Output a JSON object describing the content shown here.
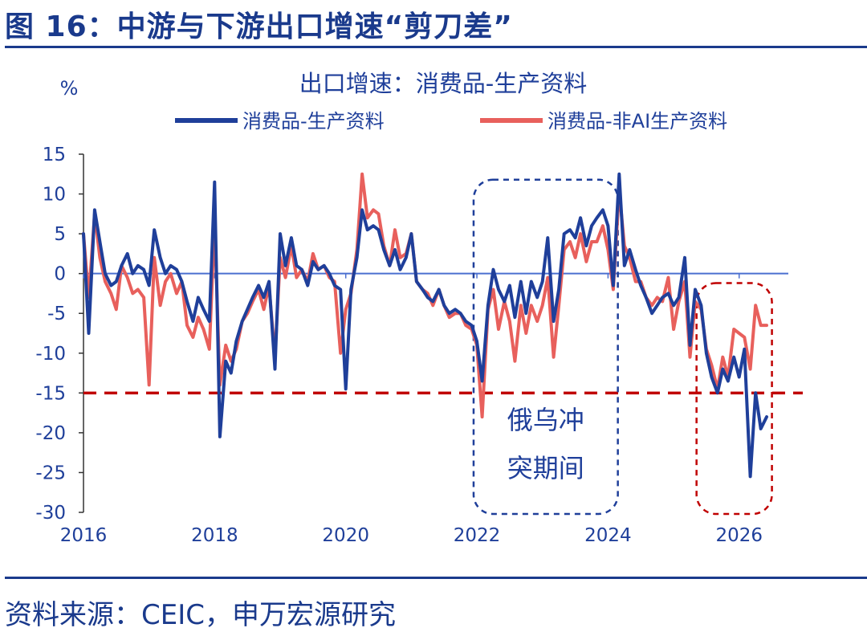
{
  "figure": {
    "title": "图 16：中游与下游出口增速“剪刀差”",
    "source": "资料来源：CEIC，申万宏源研究"
  },
  "chart_data": {
    "type": "line",
    "title": "出口增速：消费品-生产资料",
    "ylabel": "%",
    "xlabel": "",
    "ylim": [
      -30,
      15
    ],
    "yticks": [
      15,
      10,
      5,
      0,
      -5,
      -10,
      -15,
      -20,
      -25,
      -30
    ],
    "xlim": [
      2016,
      2026.75
    ],
    "xticks": [
      2016,
      2018,
      2020,
      2022,
      2024,
      2026
    ],
    "legend_position": "top",
    "grid": false,
    "colors": {
      "series1": "#1f3f9a",
      "series2": "#e8605c",
      "reference": "#c00000",
      "zero": "#4a6fd0"
    },
    "reference_line": {
      "y": -15,
      "style": "dashed",
      "color": "#c00000"
    },
    "annotations": [
      {
        "text_lines": [
          "俄乌冲",
          "突期间"
        ],
        "x_range": [
          2021.95,
          2024.15
        ],
        "y_range": [
          -30.2,
          11.8
        ],
        "color": "#1f3f9a",
        "style": "dashed-rounded-box"
      },
      {
        "text_lines": [],
        "x_range": [
          2025.35,
          2026.5
        ],
        "y_range": [
          -30.2,
          -1.2
        ],
        "color": "#c00000",
        "style": "dashed-rounded-box"
      }
    ],
    "series": [
      {
        "name": "消费品-生产资料",
        "color": "#1f3f9a",
        "points": [
          [
            2016.0,
            5
          ],
          [
            2016.08,
            -7.5
          ],
          [
            2016.17,
            8
          ],
          [
            2016.25,
            4
          ],
          [
            2016.33,
            0
          ],
          [
            2016.42,
            -1.5
          ],
          [
            2016.5,
            -1
          ],
          [
            2016.58,
            1
          ],
          [
            2016.67,
            2.5
          ],
          [
            2016.75,
            0
          ],
          [
            2016.83,
            1
          ],
          [
            2016.92,
            0.5
          ],
          [
            2017.0,
            -1.5
          ],
          [
            2017.08,
            5.5
          ],
          [
            2017.17,
            2
          ],
          [
            2017.25,
            0
          ],
          [
            2017.33,
            1
          ],
          [
            2017.42,
            0.5
          ],
          [
            2017.5,
            -1
          ],
          [
            2017.58,
            -3.5
          ],
          [
            2017.67,
            -6
          ],
          [
            2017.75,
            -3
          ],
          [
            2017.83,
            -4.5
          ],
          [
            2017.92,
            -6
          ],
          [
            2018.0,
            11.5
          ],
          [
            2018.08,
            -20.5
          ],
          [
            2018.17,
            -11
          ],
          [
            2018.25,
            -12.5
          ],
          [
            2018.33,
            -8.5
          ],
          [
            2018.42,
            -6
          ],
          [
            2018.5,
            -4.5
          ],
          [
            2018.58,
            -3
          ],
          [
            2018.67,
            -1.5
          ],
          [
            2018.75,
            -3
          ],
          [
            2018.83,
            -1
          ],
          [
            2018.92,
            -12
          ],
          [
            2019.0,
            5
          ],
          [
            2019.08,
            1
          ],
          [
            2019.17,
            4.5
          ],
          [
            2019.25,
            1
          ],
          [
            2019.33,
            0.5
          ],
          [
            2019.42,
            -1.5
          ],
          [
            2019.5,
            1.5
          ],
          [
            2019.58,
            0.5
          ],
          [
            2019.67,
            1
          ],
          [
            2019.75,
            0
          ],
          [
            2019.83,
            -1.5
          ],
          [
            2019.92,
            -2
          ],
          [
            2020.0,
            -14.5
          ],
          [
            2020.08,
            -2
          ],
          [
            2020.17,
            2
          ],
          [
            2020.25,
            8
          ],
          [
            2020.33,
            5.5
          ],
          [
            2020.42,
            6
          ],
          [
            2020.5,
            5.5
          ],
          [
            2020.58,
            3
          ],
          [
            2020.67,
            1
          ],
          [
            2020.75,
            3
          ],
          [
            2020.83,
            0.5
          ],
          [
            2020.92,
            2
          ],
          [
            2021.0,
            5
          ],
          [
            2021.08,
            -1
          ],
          [
            2021.17,
            -2
          ],
          [
            2021.25,
            -3
          ],
          [
            2021.33,
            -3.5
          ],
          [
            2021.42,
            -2
          ],
          [
            2021.5,
            -4
          ],
          [
            2021.58,
            -5
          ],
          [
            2021.67,
            -4.5
          ],
          [
            2021.75,
            -5
          ],
          [
            2021.83,
            -6
          ],
          [
            2021.92,
            -6.5
          ],
          [
            2022.0,
            -8.5
          ],
          [
            2022.08,
            -13.5
          ],
          [
            2022.17,
            -4
          ],
          [
            2022.25,
            0.5
          ],
          [
            2022.33,
            -2
          ],
          [
            2022.42,
            -3.5
          ],
          [
            2022.5,
            -1.5
          ],
          [
            2022.58,
            -5.5
          ],
          [
            2022.67,
            -1
          ],
          [
            2022.75,
            -5
          ],
          [
            2022.83,
            -1
          ],
          [
            2022.92,
            -3
          ],
          [
            2023.0,
            -1
          ],
          [
            2023.08,
            4.5
          ],
          [
            2023.17,
            -6
          ],
          [
            2023.25,
            -2
          ],
          [
            2023.33,
            5
          ],
          [
            2023.42,
            5.5
          ],
          [
            2023.5,
            4.5
          ],
          [
            2023.58,
            7
          ],
          [
            2023.67,
            3.5
          ],
          [
            2023.75,
            6
          ],
          [
            2023.83,
            7
          ],
          [
            2023.92,
            8
          ],
          [
            2024.0,
            6
          ],
          [
            2024.08,
            -1.5
          ],
          [
            2024.17,
            12.5
          ],
          [
            2024.25,
            1
          ],
          [
            2024.33,
            3
          ],
          [
            2024.42,
            0.5
          ],
          [
            2024.5,
            -1.5
          ],
          [
            2024.58,
            -3
          ],
          [
            2024.67,
            -5
          ],
          [
            2024.75,
            -4
          ],
          [
            2024.83,
            -3
          ],
          [
            2024.92,
            -2.5
          ],
          [
            2025.0,
            -4
          ],
          [
            2025.08,
            -3
          ],
          [
            2025.17,
            2
          ],
          [
            2025.25,
            -9
          ],
          [
            2025.33,
            -2
          ],
          [
            2025.42,
            -4
          ],
          [
            2025.5,
            -10
          ],
          [
            2025.58,
            -13
          ],
          [
            2025.67,
            -15
          ],
          [
            2025.75,
            -12
          ],
          [
            2025.83,
            -13.5
          ],
          [
            2025.92,
            -10.5
          ],
          [
            2026.0,
            -13
          ],
          [
            2026.08,
            -9.5
          ],
          [
            2026.17,
            -25.5
          ],
          [
            2026.25,
            -15
          ],
          [
            2026.33,
            -19.5
          ],
          [
            2026.42,
            -18
          ]
        ]
      },
      {
        "name": "消费品-非AI生产资料",
        "color": "#e8605c",
        "points": [
          [
            2016.0,
            5
          ],
          [
            2016.08,
            -3
          ],
          [
            2016.17,
            7.5
          ],
          [
            2016.25,
            2
          ],
          [
            2016.33,
            -1
          ],
          [
            2016.42,
            -2.5
          ],
          [
            2016.5,
            -4.5
          ],
          [
            2016.58,
            1
          ],
          [
            2016.67,
            -0.5
          ],
          [
            2016.75,
            -2.5
          ],
          [
            2016.83,
            -2
          ],
          [
            2016.92,
            -3
          ],
          [
            2017.0,
            -14
          ],
          [
            2017.08,
            2
          ],
          [
            2017.17,
            -4
          ],
          [
            2017.25,
            -1
          ],
          [
            2017.33,
            0
          ],
          [
            2017.42,
            -2.5
          ],
          [
            2017.5,
            -1
          ],
          [
            2017.58,
            -6.5
          ],
          [
            2017.67,
            -8
          ],
          [
            2017.75,
            -5.5
          ],
          [
            2017.83,
            -7
          ],
          [
            2017.92,
            -9.5
          ],
          [
            2018.0,
            6.5
          ],
          [
            2018.08,
            -14
          ],
          [
            2018.17,
            -9
          ],
          [
            2018.25,
            -11
          ],
          [
            2018.33,
            -9.5
          ],
          [
            2018.42,
            -6
          ],
          [
            2018.5,
            -5
          ],
          [
            2018.58,
            -3.5
          ],
          [
            2018.67,
            -2
          ],
          [
            2018.75,
            -4.5
          ],
          [
            2018.83,
            -1.5
          ],
          [
            2018.92,
            -10.5
          ],
          [
            2019.0,
            2
          ],
          [
            2019.08,
            -0.5
          ],
          [
            2019.17,
            3.5
          ],
          [
            2019.25,
            -0.5
          ],
          [
            2019.33,
            0.5
          ],
          [
            2019.42,
            -1
          ],
          [
            2019.5,
            2.5
          ],
          [
            2019.58,
            0.5
          ],
          [
            2019.67,
            1
          ],
          [
            2019.75,
            -0.5
          ],
          [
            2019.83,
            -1
          ],
          [
            2019.92,
            -10
          ],
          [
            2020.0,
            -4.5
          ],
          [
            2020.08,
            -2.5
          ],
          [
            2020.17,
            3
          ],
          [
            2020.25,
            12.5
          ],
          [
            2020.33,
            7
          ],
          [
            2020.42,
            8
          ],
          [
            2020.5,
            7.5
          ],
          [
            2020.58,
            3.5
          ],
          [
            2020.67,
            1
          ],
          [
            2020.75,
            5.5
          ],
          [
            2020.83,
            2
          ],
          [
            2020.92,
            2.5
          ],
          [
            2021.0,
            5
          ],
          [
            2021.08,
            -1
          ],
          [
            2021.17,
            -2
          ],
          [
            2021.25,
            -2.5
          ],
          [
            2021.33,
            -4
          ],
          [
            2021.42,
            -2
          ],
          [
            2021.5,
            -4
          ],
          [
            2021.58,
            -5.5
          ],
          [
            2021.67,
            -5
          ],
          [
            2021.75,
            -5
          ],
          [
            2021.83,
            -6.5
          ],
          [
            2021.92,
            -7
          ],
          [
            2022.0,
            -9
          ],
          [
            2022.08,
            -18
          ],
          [
            2022.17,
            -4.5
          ],
          [
            2022.25,
            -2
          ],
          [
            2022.33,
            -7
          ],
          [
            2022.42,
            -3.5
          ],
          [
            2022.5,
            -6
          ],
          [
            2022.58,
            -11
          ],
          [
            2022.67,
            -4
          ],
          [
            2022.75,
            -7.5
          ],
          [
            2022.83,
            -4
          ],
          [
            2022.92,
            -6
          ],
          [
            2023.0,
            -4
          ],
          [
            2023.08,
            -0.5
          ],
          [
            2023.17,
            -10.5
          ],
          [
            2023.25,
            -4
          ],
          [
            2023.33,
            3
          ],
          [
            2023.42,
            4
          ],
          [
            2023.5,
            2
          ],
          [
            2023.58,
            5
          ],
          [
            2023.67,
            1.5
          ],
          [
            2023.75,
            4
          ],
          [
            2023.83,
            4
          ],
          [
            2023.92,
            6
          ],
          [
            2024.0,
            3
          ],
          [
            2024.08,
            -2
          ],
          [
            2024.17,
            10.5
          ],
          [
            2024.25,
            3.5
          ],
          [
            2024.33,
            2
          ],
          [
            2024.42,
            -1
          ],
          [
            2024.5,
            -1
          ],
          [
            2024.58,
            -3
          ],
          [
            2024.67,
            -4
          ],
          [
            2024.75,
            -3
          ],
          [
            2024.83,
            -3.5
          ],
          [
            2024.92,
            -0.5
          ],
          [
            2025.0,
            -7
          ],
          [
            2025.08,
            -3.5
          ],
          [
            2025.17,
            -1
          ],
          [
            2025.25,
            -10.5
          ],
          [
            2025.33,
            -3.5
          ],
          [
            2025.42,
            -4.5
          ],
          [
            2025.5,
            -9.5
          ],
          [
            2025.58,
            -11.5
          ],
          [
            2025.67,
            -14.5
          ],
          [
            2025.75,
            -10.5
          ],
          [
            2025.83,
            -13
          ],
          [
            2025.92,
            -7
          ],
          [
            2026.0,
            -7.5
          ],
          [
            2026.08,
            -8
          ],
          [
            2026.17,
            -12
          ],
          [
            2026.25,
            -4
          ],
          [
            2026.33,
            -6.5
          ],
          [
            2026.42,
            -6.5
          ]
        ]
      }
    ]
  }
}
